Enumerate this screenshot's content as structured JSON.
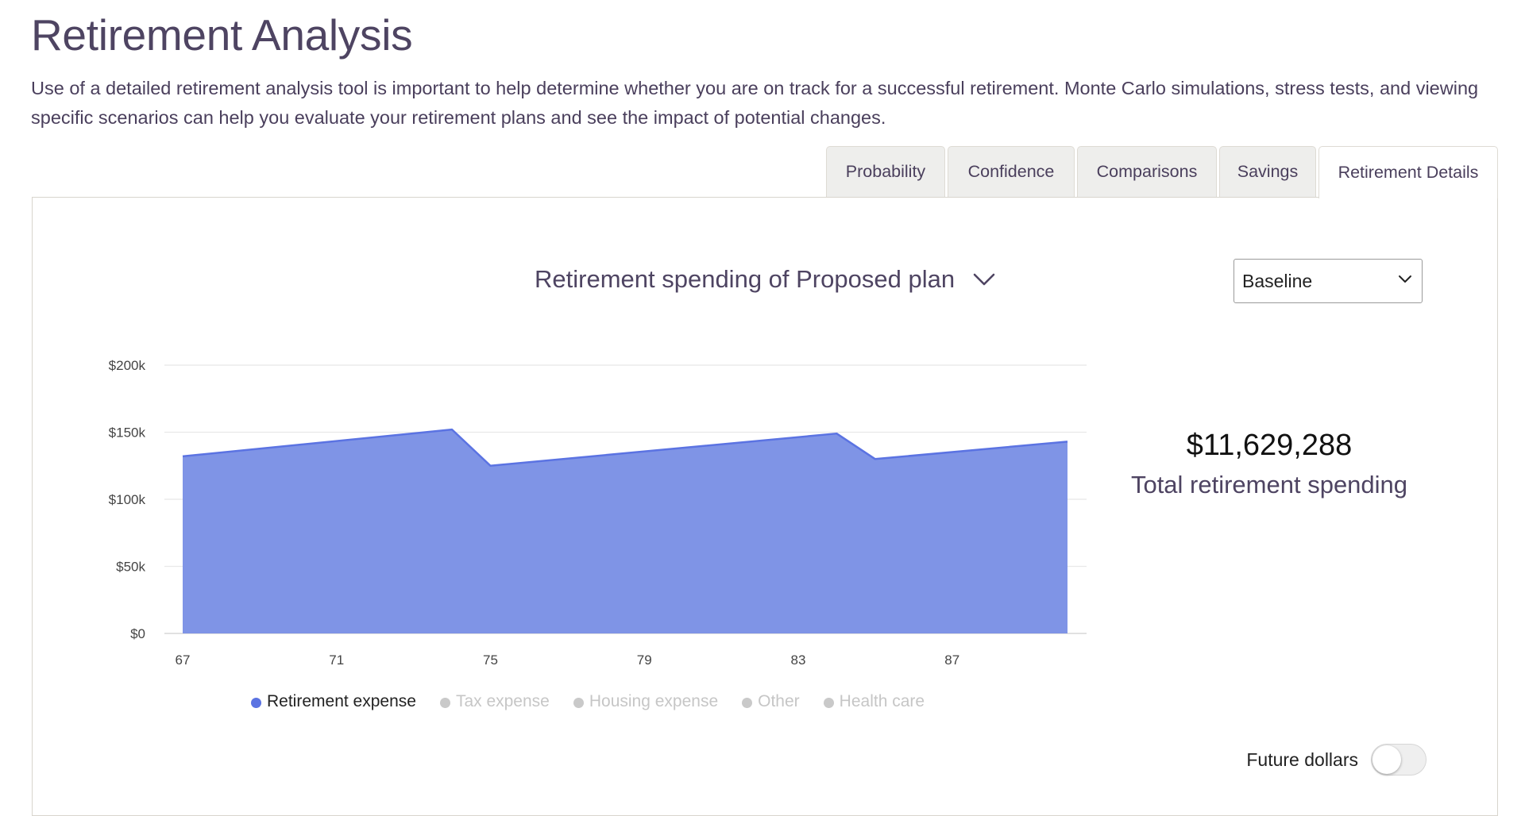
{
  "page": {
    "title": "Retirement Analysis",
    "intro": "Use of a detailed retirement analysis tool is important to help determine whether you are on track for a successful retirement. Monte Carlo simulations, stress tests, and viewing specific scenarios can help you evaluate your retirement plans and see the impact of potential changes."
  },
  "tabs": [
    {
      "label": "Probability",
      "active": false
    },
    {
      "label": "Confidence",
      "active": false
    },
    {
      "label": "Comparisons",
      "active": false
    },
    {
      "label": "Savings",
      "active": false
    },
    {
      "label": "Retirement Details",
      "active": true
    }
  ],
  "panel": {
    "chart_title": "Retirement spending of Proposed plan",
    "scenario_select": "Baseline",
    "total_amount": "$11,629,288",
    "total_label": "Total retirement spending",
    "future_dollars_label": "Future dollars",
    "future_dollars_on": false
  },
  "chart_data": {
    "type": "area",
    "x": [
      67,
      74,
      75,
      84,
      85,
      90
    ],
    "series": [
      {
        "name": "Retirement expense",
        "values": [
          132000,
          152000,
          125000,
          149000,
          130000,
          143000
        ],
        "color": "#5b73e2",
        "fill": "#7f94e6",
        "active": true
      }
    ],
    "xticks": [
      "67",
      "71",
      "75",
      "79",
      "83",
      "87"
    ],
    "yticks": [
      "$0",
      "$50k",
      "$100k",
      "$150k",
      "$200k"
    ],
    "ylim": [
      0,
      200000
    ],
    "xlim": [
      67,
      90
    ],
    "grid": true,
    "legend": [
      {
        "label": "Retirement expense",
        "active": true,
        "color": "#5b73e2"
      },
      {
        "label": "Tax expense",
        "active": false,
        "color": "#c9c9c9"
      },
      {
        "label": "Housing expense",
        "active": false,
        "color": "#c9c9c9"
      },
      {
        "label": "Other",
        "active": false,
        "color": "#c9c9c9"
      },
      {
        "label": "Health care",
        "active": false,
        "color": "#c9c9c9"
      }
    ],
    "legend_position": "bottom"
  }
}
